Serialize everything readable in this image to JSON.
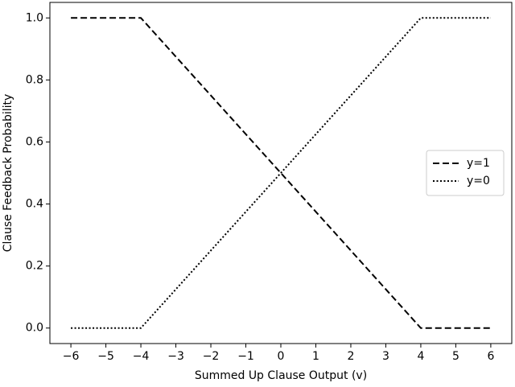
{
  "chart_data": {
    "type": "line",
    "x_label": "Summed Up Clause Output (v)",
    "y_label": "Clause Feedback Probability",
    "x": [
      -6,
      -4,
      4,
      6
    ],
    "series": [
      {
        "name": "y=1",
        "color": "#000000",
        "linestyle": "dashed",
        "values": [
          1,
          1,
          0,
          0
        ]
      },
      {
        "name": "y=0",
        "color": "#000000",
        "linestyle": "dotted",
        "values": [
          0,
          0,
          1,
          1
        ]
      }
    ],
    "xlim": [
      -6.6,
      6.6
    ],
    "ylim": [
      -0.05,
      1.05
    ],
    "xticks": [
      {
        "value": -6,
        "label": "−6"
      },
      {
        "value": -5,
        "label": "−5"
      },
      {
        "value": -4,
        "label": "−4"
      },
      {
        "value": -3,
        "label": "−3"
      },
      {
        "value": -2,
        "label": "−2"
      },
      {
        "value": -1,
        "label": "−1"
      },
      0,
      1,
      2,
      3,
      4,
      5,
      6
    ],
    "yticks": [
      {
        "value": 0,
        "label": "0.0"
      },
      0.2,
      0.4,
      0.6,
      0.8,
      {
        "value": 1,
        "label": "1.0"
      }
    ],
    "legend": "center right"
  }
}
